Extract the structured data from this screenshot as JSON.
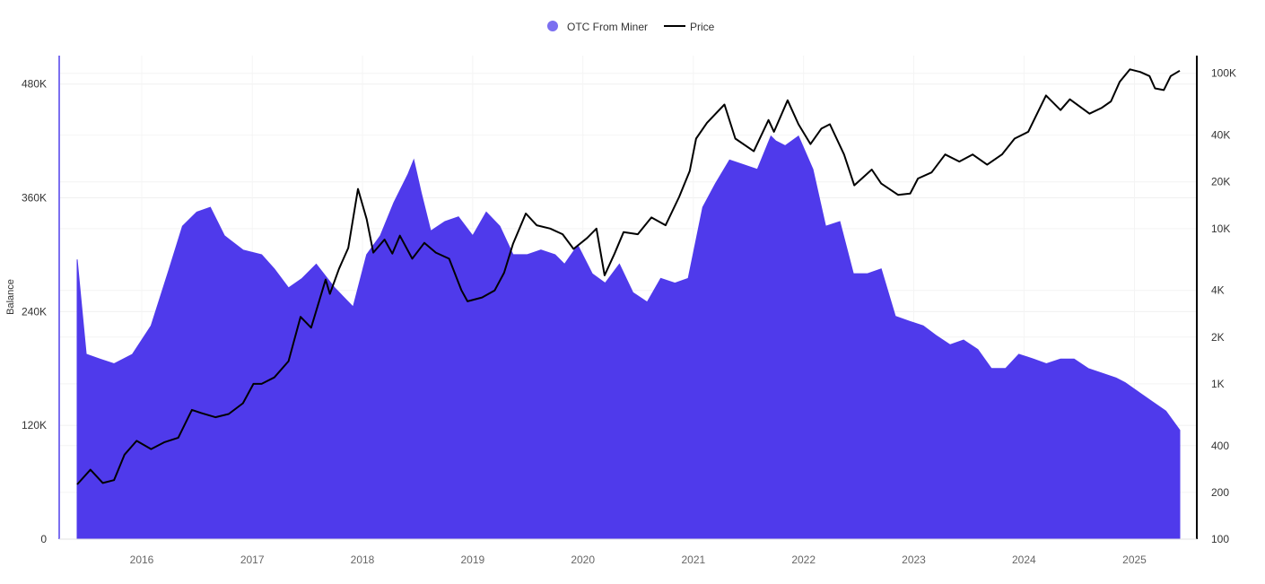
{
  "chart_data": {
    "type": "area",
    "title": "",
    "legend": {
      "placement": "top-center",
      "items": [
        {
          "label": "OTC From Miner",
          "marker": "dot",
          "color": "#7b6ff0"
        },
        {
          "label": "Price",
          "marker": "line",
          "color": "#000000"
        }
      ]
    },
    "grid": true,
    "x_axis": {
      "type": "date",
      "range": [
        "2015-06-01",
        "2025-05-31"
      ],
      "tick_labels": [
        "2016",
        "2017",
        "2018",
        "2019",
        "2020",
        "2021",
        "2022",
        "2023",
        "2024",
        "2025"
      ],
      "tick_values": [
        "2016-01-01",
        "2017-01-01",
        "2018-01-01",
        "2019-01-01",
        "2020-01-01",
        "2021-01-01",
        "2022-01-01",
        "2023-01-01",
        "2024-01-01",
        "2025-01-01"
      ]
    },
    "y_left": {
      "label": "Balance",
      "range": [
        0,
        510000
      ],
      "tick_values": [
        0,
        120000,
        240000,
        360000,
        480000
      ],
      "tick_labels": [
        "0",
        "120K",
        "240K",
        "360K",
        "480K"
      ]
    },
    "y_right": {
      "scale": "log",
      "range": [
        100,
        130000
      ],
      "tick_values": [
        100,
        200,
        400,
        1000,
        2000,
        4000,
        10000,
        20000,
        40000,
        100000
      ],
      "tick_labels": [
        "100",
        "200",
        "400",
        "1K",
        "2K",
        "4K",
        "10K",
        "20K",
        "40K",
        "100K"
      ]
    },
    "series": [
      {
        "name": "OTC From Miner",
        "type": "area",
        "axis": "left",
        "color": "#4f3aeb",
        "x": [
          "2015-06-01",
          "2015-07-01",
          "2015-08-15",
          "2015-10-01",
          "2015-12-01",
          "2016-02-01",
          "2016-04-01",
          "2016-05-15",
          "2016-07-01",
          "2016-08-15",
          "2016-10-01",
          "2016-12-01",
          "2017-02-01",
          "2017-03-15",
          "2017-05-01",
          "2017-06-15",
          "2017-08-01",
          "2017-10-01",
          "2017-12-01",
          "2018-01-15",
          "2018-03-01",
          "2018-04-15",
          "2018-06-01",
          "2018-06-20",
          "2018-07-15",
          "2018-08-15",
          "2018-10-01",
          "2018-11-15",
          "2019-01-01",
          "2019-02-15",
          "2019-04-01",
          "2019-05-15",
          "2019-07-01",
          "2019-08-15",
          "2019-10-01",
          "2019-11-01",
          "2019-12-15",
          "2020-02-01",
          "2020-03-15",
          "2020-05-01",
          "2020-06-15",
          "2020-08-01",
          "2020-09-15",
          "2020-11-01",
          "2020-12-15",
          "2021-02-01",
          "2021-03-15",
          "2021-05-01",
          "2021-06-15",
          "2021-08-01",
          "2021-09-15",
          "2021-10-01",
          "2021-11-01",
          "2021-12-15",
          "2022-02-01",
          "2022-03-15",
          "2022-05-01",
          "2022-06-15",
          "2022-08-01",
          "2022-09-15",
          "2022-11-01",
          "2022-12-15",
          "2023-02-01",
          "2023-03-15",
          "2023-05-01",
          "2023-06-15",
          "2023-08-01",
          "2023-09-15",
          "2023-11-01",
          "2023-12-15",
          "2024-02-01",
          "2024-03-15",
          "2024-05-01",
          "2024-06-15",
          "2024-08-01",
          "2024-09-15",
          "2024-11-01",
          "2024-12-01",
          "2025-01-15",
          "2025-03-01",
          "2025-04-15",
          "2025-05-31"
        ],
        "values": [
          295000,
          195000,
          190000,
          185000,
          195000,
          225000,
          285000,
          330000,
          345000,
          350000,
          320000,
          305000,
          300000,
          285000,
          265000,
          275000,
          290000,
          265000,
          245000,
          300000,
          320000,
          355000,
          385000,
          400000,
          365000,
          325000,
          335000,
          340000,
          320000,
          345000,
          330000,
          300000,
          300000,
          305000,
          300000,
          290000,
          310000,
          280000,
          270000,
          290000,
          260000,
          250000,
          275000,
          270000,
          275000,
          350000,
          375000,
          400000,
          395000,
          390000,
          425000,
          420000,
          415000,
          425000,
          390000,
          330000,
          335000,
          280000,
          280000,
          285000,
          235000,
          230000,
          225000,
          215000,
          205000,
          210000,
          200000,
          180000,
          180000,
          195000,
          190000,
          185000,
          190000,
          190000,
          180000,
          175000,
          170000,
          165000,
          155000,
          145000,
          135000,
          115000
        ]
      },
      {
        "name": "Price",
        "type": "line",
        "axis": "right",
        "color": "#000000",
        "scale": "log",
        "x": [
          "2015-06-01",
          "2015-07-15",
          "2015-08-25",
          "2015-10-01",
          "2015-11-05",
          "2015-12-15",
          "2016-02-01",
          "2016-03-15",
          "2016-05-01",
          "2016-06-15",
          "2016-07-15",
          "2016-09-01",
          "2016-10-15",
          "2016-12-01",
          "2017-01-05",
          "2017-02-01",
          "2017-03-15",
          "2017-05-01",
          "2017-06-10",
          "2017-07-15",
          "2017-09-01",
          "2017-09-15",
          "2017-10-15",
          "2017-11-15",
          "2017-12-17",
          "2018-01-15",
          "2018-02-06",
          "2018-03-15",
          "2018-04-10",
          "2018-05-05",
          "2018-06-15",
          "2018-07-25",
          "2018-09-01",
          "2018-10-15",
          "2018-11-25",
          "2018-12-15",
          "2019-02-01",
          "2019-03-15",
          "2019-04-15",
          "2019-05-15",
          "2019-06-26",
          "2019-08-01",
          "2019-09-15",
          "2019-10-26",
          "2019-12-01",
          "2020-01-15",
          "2020-02-15",
          "2020-03-13",
          "2020-04-15",
          "2020-05-15",
          "2020-07-01",
          "2020-08-15",
          "2020-10-01",
          "2020-11-15",
          "2020-12-20",
          "2021-01-10",
          "2021-02-15",
          "2021-04-14",
          "2021-05-20",
          "2021-07-20",
          "2021-09-07",
          "2021-09-25",
          "2021-11-09",
          "2021-12-15",
          "2022-01-24",
          "2022-03-01",
          "2022-03-29",
          "2022-05-15",
          "2022-06-18",
          "2022-08-15",
          "2022-09-15",
          "2022-11-10",
          "2022-12-20",
          "2023-01-15",
          "2023-03-01",
          "2023-04-15",
          "2023-06-01",
          "2023-07-15",
          "2023-09-01",
          "2023-10-20",
          "2023-12-01",
          "2024-01-15",
          "2024-03-14",
          "2024-05-01",
          "2024-06-01",
          "2024-08-05",
          "2024-09-15",
          "2024-10-15",
          "2024-11-13",
          "2024-12-17",
          "2025-01-20",
          "2025-02-20",
          "2025-03-10",
          "2025-04-08",
          "2025-05-01",
          "2025-05-31"
        ],
        "values": [
          225,
          280,
          230,
          240,
          350,
          430,
          380,
          420,
          450,
          680,
          650,
          610,
          640,
          750,
          1000,
          1000,
          1100,
          1400,
          2700,
          2300,
          4700,
          3800,
          5500,
          7500,
          18000,
          11500,
          7000,
          8500,
          6900,
          9000,
          6400,
          8100,
          7000,
          6400,
          4000,
          3400,
          3600,
          4000,
          5200,
          8000,
          12500,
          10500,
          10000,
          9200,
          7400,
          8700,
          10000,
          5000,
          6900,
          9500,
          9200,
          11800,
          10500,
          16000,
          23500,
          38000,
          48000,
          63000,
          38000,
          31500,
          50000,
          42000,
          67000,
          47000,
          35000,
          44000,
          47000,
          30000,
          19000,
          24000,
          19500,
          16500,
          16800,
          21000,
          23000,
          30000,
          27000,
          30000,
          25800,
          30000,
          38000,
          42000,
          72000,
          58000,
          68000,
          55000,
          60000,
          66000,
          88000,
          106000,
          102000,
          96000,
          80000,
          78000,
          96000,
          104000
        ]
      }
    ]
  }
}
